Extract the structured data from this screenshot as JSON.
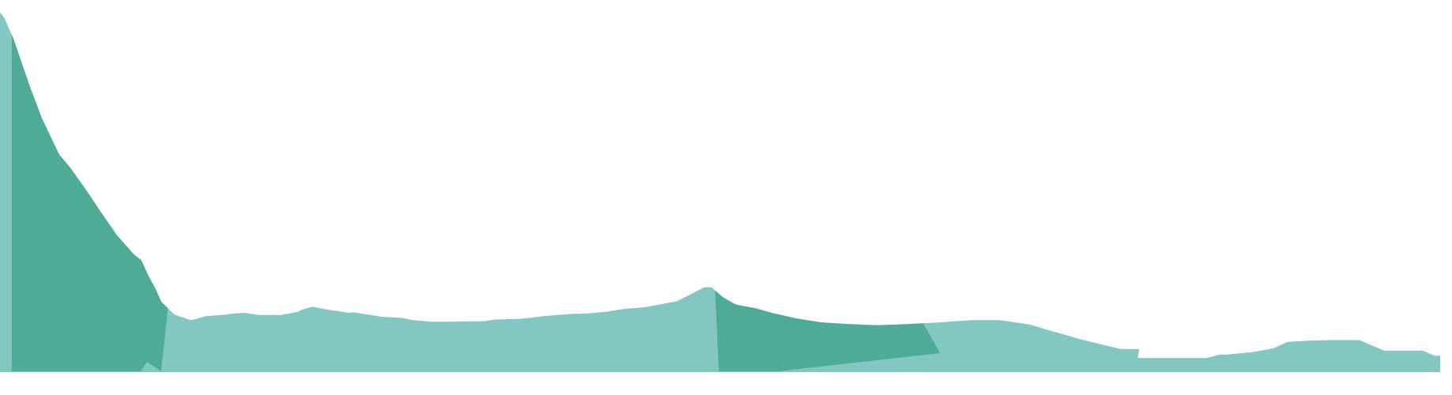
{
  "chart_data": {
    "type": "area",
    "title": "",
    "xlabel": "",
    "ylabel": "",
    "grid": false,
    "legend": "none",
    "x": [
      0.0,
      0.003,
      0.009,
      0.015,
      0.021,
      0.029,
      0.041,
      0.049,
      0.06,
      0.069,
      0.081,
      0.093,
      0.098,
      0.103,
      0.108,
      0.112,
      0.121,
      0.129,
      0.133,
      0.143,
      0.157,
      0.163,
      0.17,
      0.18,
      0.195,
      0.207,
      0.21,
      0.217,
      0.227,
      0.235,
      0.242,
      0.245,
      0.26,
      0.265,
      0.279,
      0.287,
      0.299,
      0.309,
      0.336,
      0.344,
      0.359,
      0.368,
      0.377,
      0.386,
      0.397,
      0.408,
      0.421,
      0.433,
      0.447,
      0.458,
      0.47,
      0.48,
      0.489,
      0.494,
      0.502,
      0.511,
      0.525,
      0.536,
      0.553,
      0.57,
      0.588,
      0.606,
      0.612,
      0.624,
      0.639,
      0.653,
      0.663,
      0.675,
      0.694,
      0.715,
      0.728,
      0.751,
      0.778,
      0.791,
      0.79,
      0.838,
      0.847,
      0.852,
      0.868,
      0.88,
      0.885,
      0.894,
      0.908,
      0.924,
      0.93,
      0.934,
      0.944,
      0.961,
      0.988,
      0.996,
      1.0
    ],
    "series": [
      {
        "values": [
          1905,
          1895,
          1860,
          1815,
          1770,
          1715,
          1650,
          1625,
          1585,
          1550,
          1505,
          1470,
          1460,
          1432,
          1408,
          1385,
          1362,
          1355,
          1352,
          1359,
          1362,
          1364,
          1365,
          1361,
          1361,
          1367,
          1371,
          1376,
          1371,
          1368,
          1365,
          1366,
          1360,
          1358,
          1356,
          1352,
          1349,
          1349,
          1350,
          1353,
          1354,
          1356,
          1359,
          1361,
          1363,
          1364,
          1367,
          1372,
          1375,
          1380,
          1386,
          1399,
          1411,
          1411,
          1393,
          1380,
          1373,
          1365,
          1355,
          1348,
          1345,
          1343,
          1343,
          1344,
          1346,
          1348,
          1350,
          1352,
          1352,
          1344,
          1334,
          1317,
          1300,
          1300,
          1284,
          1284,
          1290,
          1290,
          1294,
          1299,
          1302,
          1313,
          1315,
          1316,
          1316,
          1316,
          1316,
          1297,
          1297,
          1288,
          1288
        ]
      }
    ],
    "colors": {
      "light": "#82c7c2",
      "dark": "#4aa892"
    }
  }
}
